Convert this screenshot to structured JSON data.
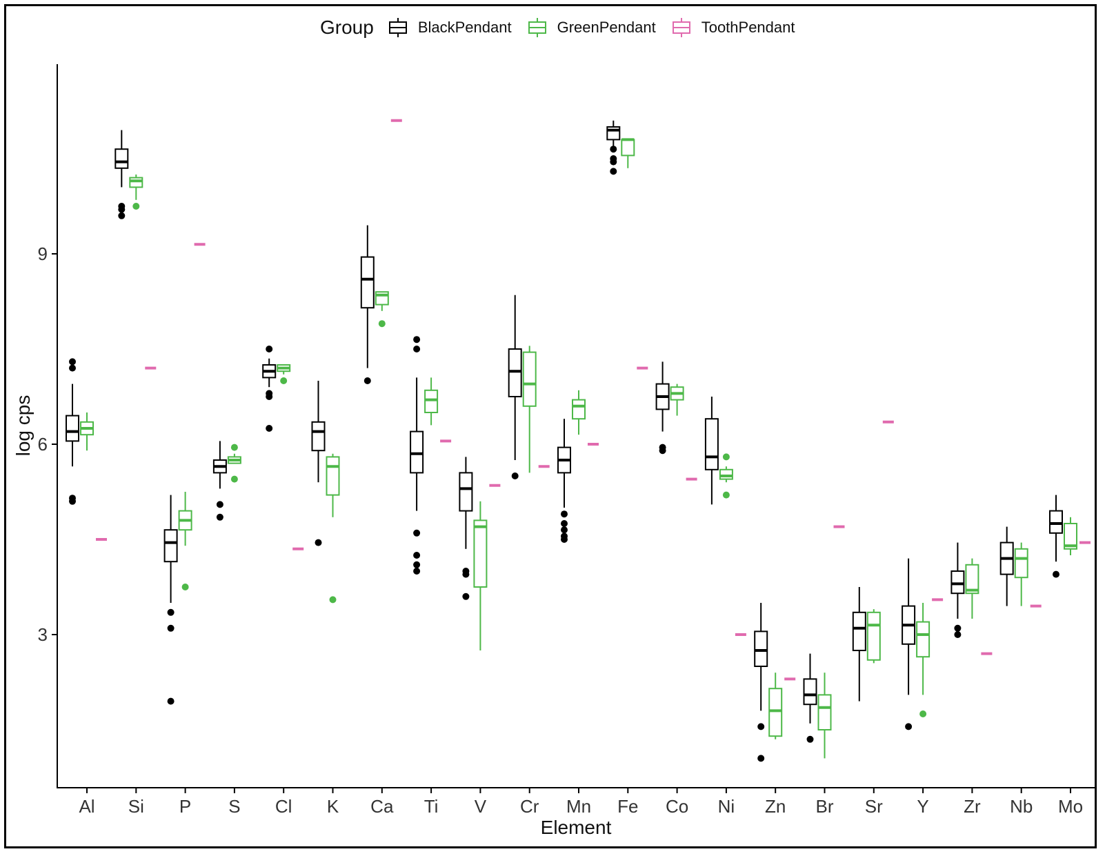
{
  "chart_data": {
    "type": "box",
    "xlabel": "Element",
    "ylabel": "log cps",
    "ylim": [
      0.1,
      11.5
    ],
    "yticks": [
      3,
      6,
      9
    ],
    "grid": false,
    "legend": {
      "title": "Group",
      "position": "top"
    },
    "categories": [
      "Al",
      "Si",
      "P",
      "S",
      "Cl",
      "K",
      "Ca",
      "Ti",
      "V",
      "Cr",
      "Mn",
      "Fe",
      "Co",
      "Ni",
      "Zn",
      "Br",
      "Sr",
      "Y",
      "Zr",
      "Nb",
      "Mo"
    ],
    "series": [
      {
        "name": "BlackPendant",
        "color": "#000000",
        "boxes": [
          {
            "lo": 5.65,
            "q1": 6.05,
            "med": 6.2,
            "q3": 6.45,
            "hi": 6.95,
            "out": [
              5.1,
              5.15,
              7.2,
              7.3
            ]
          },
          {
            "lo": 10.05,
            "q1": 10.35,
            "med": 10.45,
            "q3": 10.65,
            "hi": 10.95,
            "out": [
              9.6,
              9.7,
              9.75
            ]
          },
          {
            "lo": 3.5,
            "q1": 4.15,
            "med": 4.45,
            "q3": 4.65,
            "hi": 5.2,
            "out": [
              1.95,
              3.1,
              3.35
            ]
          },
          {
            "lo": 5.3,
            "q1": 5.55,
            "med": 5.65,
            "q3": 5.75,
            "hi": 6.05,
            "out": [
              4.85,
              5.05
            ]
          },
          {
            "lo": 6.9,
            "q1": 7.05,
            "med": 7.15,
            "q3": 7.25,
            "hi": 7.35,
            "out": [
              6.25,
              6.75,
              6.8,
              7.5
            ]
          },
          {
            "lo": 5.4,
            "q1": 5.9,
            "med": 6.2,
            "q3": 6.35,
            "hi": 7.0,
            "out": [
              4.45
            ]
          },
          {
            "lo": 7.2,
            "q1": 8.15,
            "med": 8.6,
            "q3": 8.95,
            "hi": 9.45,
            "out": [
              7.0
            ]
          },
          {
            "lo": 4.95,
            "q1": 5.55,
            "med": 5.85,
            "q3": 6.2,
            "hi": 7.05,
            "out": [
              4.0,
              4.1,
              4.25,
              4.6,
              7.5,
              7.65
            ]
          },
          {
            "lo": 4.35,
            "q1": 4.95,
            "med": 5.3,
            "q3": 5.55,
            "hi": 5.8,
            "out": [
              3.6,
              3.95,
              4.0
            ]
          },
          {
            "lo": 5.75,
            "q1": 6.75,
            "med": 7.15,
            "q3": 7.5,
            "hi": 8.35,
            "out": [
              5.5
            ]
          },
          {
            "lo": 5.0,
            "q1": 5.55,
            "med": 5.75,
            "q3": 5.95,
            "hi": 6.4,
            "out": [
              4.5,
              4.55,
              4.65,
              4.75,
              4.9
            ]
          },
          {
            "lo": 10.65,
            "q1": 10.8,
            "med": 10.95,
            "q3": 11.0,
            "hi": 11.1,
            "out": [
              10.3,
              10.45,
              10.5,
              10.65
            ]
          },
          {
            "lo": 6.2,
            "q1": 6.55,
            "med": 6.75,
            "q3": 6.95,
            "hi": 7.3,
            "out": [
              5.9,
              5.95
            ]
          },
          {
            "lo": 5.05,
            "q1": 5.6,
            "med": 5.8,
            "q3": 6.4,
            "hi": 6.75,
            "out": []
          },
          {
            "lo": 1.8,
            "q1": 2.5,
            "med": 2.75,
            "q3": 3.05,
            "hi": 3.5,
            "out": [
              1.05,
              1.55
            ]
          },
          {
            "lo": 1.6,
            "q1": 1.9,
            "med": 2.05,
            "q3": 2.3,
            "hi": 2.7,
            "out": [
              1.35
            ]
          },
          {
            "lo": 1.95,
            "q1": 2.75,
            "med": 3.1,
            "q3": 3.35,
            "hi": 3.75,
            "out": []
          },
          {
            "lo": 2.05,
            "q1": 2.85,
            "med": 3.15,
            "q3": 3.45,
            "hi": 4.2,
            "out": [
              1.55
            ]
          },
          {
            "lo": 3.25,
            "q1": 3.65,
            "med": 3.8,
            "q3": 4.0,
            "hi": 4.45,
            "out": [
              3.0,
              3.1
            ]
          },
          {
            "lo": 3.45,
            "q1": 3.95,
            "med": 4.2,
            "q3": 4.45,
            "hi": 4.7,
            "out": []
          },
          {
            "lo": 4.15,
            "q1": 4.6,
            "med": 4.75,
            "q3": 4.95,
            "hi": 5.2,
            "out": [
              3.95
            ]
          }
        ]
      },
      {
        "name": "GreenPendant",
        "color": "#4DB848",
        "boxes": [
          {
            "lo": 5.9,
            "q1": 6.15,
            "med": 6.25,
            "q3": 6.35,
            "hi": 6.5,
            "out": []
          },
          {
            "lo": 9.85,
            "q1": 10.05,
            "med": 10.15,
            "q3": 10.2,
            "hi": 10.25,
            "out": [
              9.75
            ]
          },
          {
            "lo": 4.4,
            "q1": 4.65,
            "med": 4.8,
            "q3": 4.95,
            "hi": 5.25,
            "out": [
              3.75
            ]
          },
          {
            "lo": 5.7,
            "q1": 5.7,
            "med": 5.75,
            "q3": 5.8,
            "hi": 5.85,
            "out": [
              5.45,
              5.95
            ]
          },
          {
            "lo": 7.1,
            "q1": 7.15,
            "med": 7.2,
            "q3": 7.25,
            "hi": 7.25,
            "out": [
              7.0
            ]
          },
          {
            "lo": 4.85,
            "q1": 5.2,
            "med": 5.65,
            "q3": 5.8,
            "hi": 5.85,
            "out": [
              3.55
            ]
          },
          {
            "lo": 8.1,
            "q1": 8.2,
            "med": 8.35,
            "q3": 8.4,
            "hi": 8.4,
            "out": [
              7.9
            ]
          },
          {
            "lo": 6.3,
            "q1": 6.5,
            "med": 6.7,
            "q3": 6.85,
            "hi": 7.05,
            "out": []
          },
          {
            "lo": 2.75,
            "q1": 3.75,
            "med": 4.7,
            "q3": 4.8,
            "hi": 5.1,
            "out": []
          },
          {
            "lo": 5.55,
            "q1": 6.6,
            "med": 6.95,
            "q3": 7.45,
            "hi": 7.55,
            "out": []
          },
          {
            "lo": 6.15,
            "q1": 6.4,
            "med": 6.6,
            "q3": 6.7,
            "hi": 6.85,
            "out": []
          },
          {
            "lo": 10.35,
            "q1": 10.55,
            "med": 10.8,
            "q3": 10.8,
            "hi": 10.8,
            "out": []
          },
          {
            "lo": 6.45,
            "q1": 6.7,
            "med": 6.8,
            "q3": 6.9,
            "hi": 6.95,
            "out": []
          },
          {
            "lo": 5.4,
            "q1": 5.45,
            "med": 5.5,
            "q3": 5.6,
            "hi": 5.65,
            "out": [
              5.2,
              5.8
            ]
          },
          {
            "lo": 1.35,
            "q1": 1.4,
            "med": 1.8,
            "q3": 2.15,
            "hi": 2.4,
            "out": []
          },
          {
            "lo": 1.05,
            "q1": 1.5,
            "med": 1.85,
            "q3": 2.05,
            "hi": 2.4,
            "out": []
          },
          {
            "lo": 2.55,
            "q1": 2.6,
            "med": 3.15,
            "q3": 3.35,
            "hi": 3.4,
            "out": []
          },
          {
            "lo": 2.05,
            "q1": 2.65,
            "med": 3.0,
            "q3": 3.2,
            "hi": 3.5,
            "out": [
              1.75
            ]
          },
          {
            "lo": 3.25,
            "q1": 3.65,
            "med": 3.7,
            "q3": 4.1,
            "hi": 4.2,
            "out": []
          },
          {
            "lo": 3.45,
            "q1": 3.9,
            "med": 4.2,
            "q3": 4.35,
            "hi": 4.45,
            "out": []
          },
          {
            "lo": 4.25,
            "q1": 4.35,
            "med": 4.4,
            "q3": 4.75,
            "hi": 4.85,
            "out": []
          }
        ]
      },
      {
        "name": "ToothPendant",
        "color": "#E06AAE",
        "values": [
          4.5,
          7.2,
          9.15,
          null,
          4.35,
          null,
          11.1,
          6.05,
          5.35,
          5.65,
          6.0,
          7.2,
          5.45,
          3.0,
          2.3,
          4.7,
          6.35,
          3.55,
          2.7,
          3.45,
          4.45
        ]
      }
    ]
  }
}
